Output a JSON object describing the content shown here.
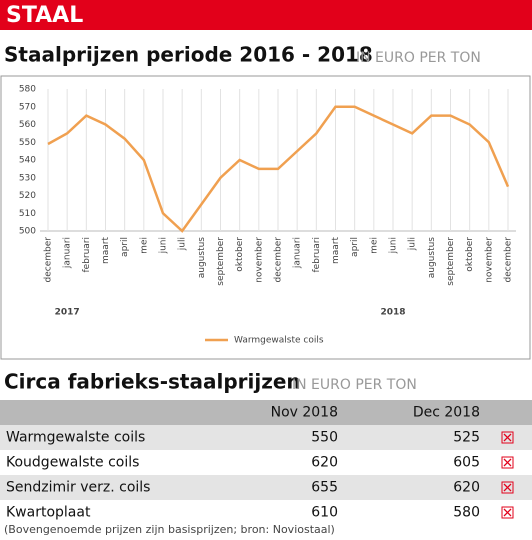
{
  "header": {
    "title": "STAAL"
  },
  "section1": {
    "title": "Staalprijzen periode 2016 - 2018",
    "unit": "IN EURO PER TON"
  },
  "chart_data": {
    "type": "line",
    "categories": [
      "december",
      "januari",
      "februari",
      "maart",
      "april",
      "mei",
      "juni",
      "juli",
      "augustus",
      "september",
      "oktober",
      "november",
      "december",
      "januari",
      "februari",
      "maart",
      "april",
      "mei",
      "juni",
      "juli",
      "augustus",
      "september",
      "oktober",
      "november",
      "december"
    ],
    "year_labels": [
      "2017",
      "2018"
    ],
    "series": [
      {
        "name": "Warmgewalste coils",
        "color": "#f0a050",
        "values": [
          549,
          555,
          565,
          560,
          552,
          540,
          510,
          500,
          515,
          530,
          540,
          535,
          535,
          545,
          555,
          570,
          570,
          565,
          560,
          555,
          565,
          565,
          560,
          550,
          525
        ]
      }
    ],
    "ylim": [
      500,
      580
    ],
    "yticks": [
      500,
      510,
      520,
      530,
      540,
      550,
      560,
      570,
      580
    ],
    "grid": true
  },
  "section2": {
    "title": "Circa fabrieks-staalprijzen",
    "unit": "IN EURO PER TON"
  },
  "table": {
    "header": [
      "Nov 2018",
      "Dec 2018"
    ],
    "rows": [
      [
        "Warmgewalste coils",
        550,
        525
      ],
      [
        "Koudgewalste coils",
        620,
        605
      ],
      [
        "Sendzimir verz. coils",
        655,
        620
      ],
      [
        "Kwartoplaat",
        610,
        580
      ]
    ],
    "footnote": "(Bovengenoemde prijzen zijn basisprijzen; bron: Noviostaal)"
  }
}
